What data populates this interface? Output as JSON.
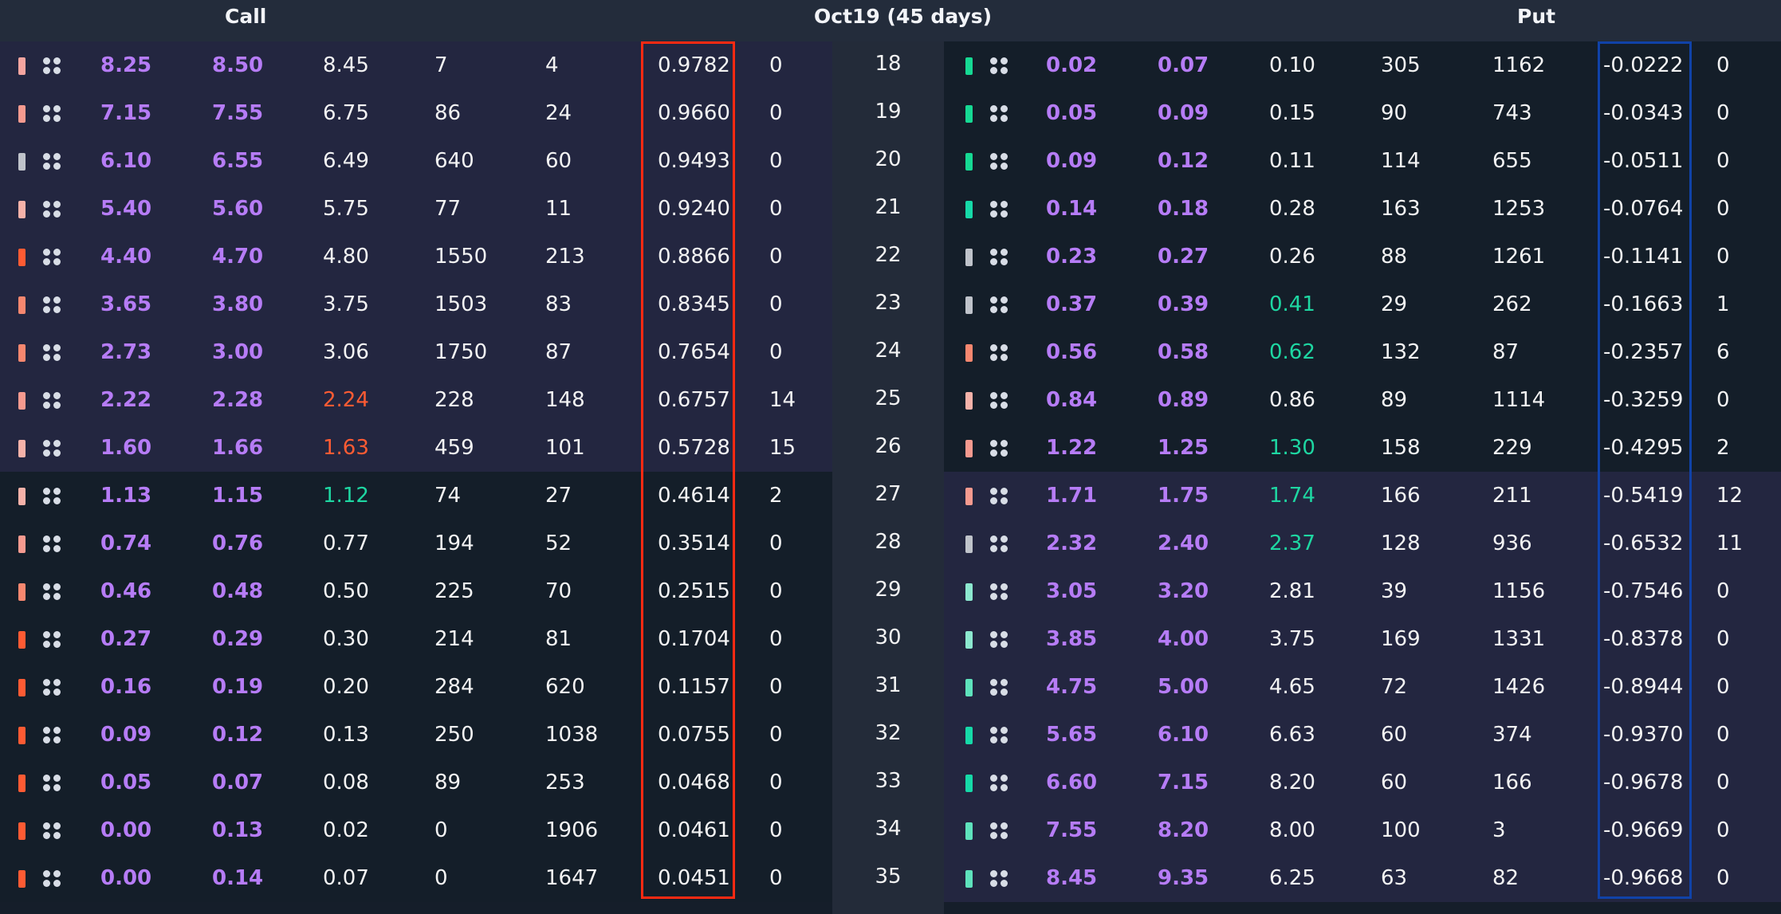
{
  "header": {
    "call_label": "Call",
    "expiry_label": "Oct19 (45 days)",
    "put_label": "Put"
  },
  "colors": {
    "call_itm_bg": "#232640",
    "put_itm_bg": "#232640",
    "otm_bg": "#141e29",
    "bid_ask": "#b67cf6",
    "last_up": "#1ed7a2",
    "last_down": "#ff5b33",
    "call_delta_highlight": "#ff2a12",
    "put_delta_highlight": "#1042a8"
  },
  "rows": [
    {
      "strike": "18",
      "call": {
        "bar": "#f6a5a0",
        "bid": "8.25",
        "ask": "8.50",
        "last": "8.45",
        "last_color": "",
        "vol": "7",
        "oi": "4",
        "delta": "0.9782",
        "pos": "0"
      },
      "put": {
        "bar": "#16d993",
        "bid": "0.02",
        "ask": "0.07",
        "last": "0.10",
        "last_color": "",
        "vol": "305",
        "oi": "1162",
        "delta": "-0.0222",
        "pos": "0"
      }
    },
    {
      "strike": "19",
      "call": {
        "bar": "#f69a8f",
        "bid": "7.15",
        "ask": "7.55",
        "last": "6.75",
        "last_color": "",
        "vol": "86",
        "oi": "24",
        "delta": "0.9660",
        "pos": "0"
      },
      "put": {
        "bar": "#16d993",
        "bid": "0.05",
        "ask": "0.09",
        "last": "0.15",
        "last_color": "",
        "vol": "90",
        "oi": "743",
        "delta": "-0.0343",
        "pos": "0"
      }
    },
    {
      "strike": "20",
      "call": {
        "bar": "#bfc3ca",
        "bid": "6.10",
        "ask": "6.55",
        "last": "6.49",
        "last_color": "",
        "vol": "640",
        "oi": "60",
        "delta": "0.9493",
        "pos": "0"
      },
      "put": {
        "bar": "#16d993",
        "bid": "0.09",
        "ask": "0.12",
        "last": "0.11",
        "last_color": "",
        "vol": "114",
        "oi": "655",
        "delta": "-0.0511",
        "pos": "0"
      }
    },
    {
      "strike": "21",
      "call": {
        "bar": "#f6b2a9",
        "bid": "5.40",
        "ask": "5.60",
        "last": "5.75",
        "last_color": "",
        "vol": "77",
        "oi": "11",
        "delta": "0.9240",
        "pos": "0"
      },
      "put": {
        "bar": "#16d9a8",
        "bid": "0.14",
        "ask": "0.18",
        "last": "0.28",
        "last_color": "",
        "vol": "163",
        "oi": "1253",
        "delta": "-0.0764",
        "pos": "0"
      }
    },
    {
      "strike": "22",
      "call": {
        "bar": "#ff5b33",
        "bid": "4.40",
        "ask": "4.70",
        "last": "4.80",
        "last_color": "",
        "vol": "1550",
        "oi": "213",
        "delta": "0.8866",
        "pos": "0"
      },
      "put": {
        "bar": "#bfc3ca",
        "bid": "0.23",
        "ask": "0.27",
        "last": "0.26",
        "last_color": "",
        "vol": "88",
        "oi": "1261",
        "delta": "-0.1141",
        "pos": "0"
      }
    },
    {
      "strike": "23",
      "call": {
        "bar": "#f7876f",
        "bid": "3.65",
        "ask": "3.80",
        "last": "3.75",
        "last_color": "",
        "vol": "1503",
        "oi": "83",
        "delta": "0.8345",
        "pos": "0"
      },
      "put": {
        "bar": "#bfc3ca",
        "bid": "0.37",
        "ask": "0.39",
        "last": "0.41",
        "last_color": "green",
        "vol": "29",
        "oi": "262",
        "delta": "-0.1663",
        "pos": "1"
      }
    },
    {
      "strike": "24",
      "call": {
        "bar": "#f7876f",
        "bid": "2.73",
        "ask": "3.00",
        "last": "3.06",
        "last_color": "",
        "vol": "1750",
        "oi": "87",
        "delta": "0.7654",
        "pos": "0"
      },
      "put": {
        "bar": "#f7876f",
        "bid": "0.56",
        "ask": "0.58",
        "last": "0.62",
        "last_color": "green",
        "vol": "132",
        "oi": "87",
        "delta": "-0.2357",
        "pos": "6"
      }
    },
    {
      "strike": "25",
      "call": {
        "bar": "#f69a8f",
        "bid": "2.22",
        "ask": "2.28",
        "last": "2.24",
        "last_color": "red",
        "vol": "228",
        "oi": "148",
        "delta": "0.6757",
        "pos": "14"
      },
      "put": {
        "bar": "#f6b2a9",
        "bid": "0.84",
        "ask": "0.89",
        "last": "0.86",
        "last_color": "",
        "vol": "89",
        "oi": "1114",
        "delta": "-0.3259",
        "pos": "0"
      }
    },
    {
      "strike": "26",
      "call": {
        "bar": "#f6b2a9",
        "bid": "1.60",
        "ask": "1.66",
        "last": "1.63",
        "last_color": "red",
        "vol": "459",
        "oi": "101",
        "delta": "0.5728",
        "pos": "15"
      },
      "put": {
        "bar": "#f69a8f",
        "bid": "1.22",
        "ask": "1.25",
        "last": "1.30",
        "last_color": "green",
        "vol": "158",
        "oi": "229",
        "delta": "-0.4295",
        "pos": "2"
      }
    },
    {
      "strike": "27",
      "call": {
        "bar": "#f6b2a9",
        "bid": "1.13",
        "ask": "1.15",
        "last": "1.12",
        "last_color": "green",
        "vol": "74",
        "oi": "27",
        "delta": "0.4614",
        "pos": "2"
      },
      "put": {
        "bar": "#f69a8f",
        "bid": "1.71",
        "ask": "1.75",
        "last": "1.74",
        "last_color": "green",
        "vol": "166",
        "oi": "211",
        "delta": "-0.5419",
        "pos": "12"
      }
    },
    {
      "strike": "28",
      "call": {
        "bar": "#f69a8f",
        "bid": "0.74",
        "ask": "0.76",
        "last": "0.77",
        "last_color": "",
        "vol": "194",
        "oi": "52",
        "delta": "0.3514",
        "pos": "0"
      },
      "put": {
        "bar": "#bfc3ca",
        "bid": "2.32",
        "ask": "2.40",
        "last": "2.37",
        "last_color": "green",
        "vol": "128",
        "oi": "936",
        "delta": "-0.6532",
        "pos": "11"
      }
    },
    {
      "strike": "29",
      "call": {
        "bar": "#f7876f",
        "bid": "0.46",
        "ask": "0.48",
        "last": "0.50",
        "last_color": "",
        "vol": "225",
        "oi": "70",
        "delta": "0.2515",
        "pos": "0"
      },
      "put": {
        "bar": "#8ce8cf",
        "bid": "3.05",
        "ask": "3.20",
        "last": "2.81",
        "last_color": "",
        "vol": "39",
        "oi": "1156",
        "delta": "-0.7546",
        "pos": "0"
      }
    },
    {
      "strike": "30",
      "call": {
        "bar": "#ff5b33",
        "bid": "0.27",
        "ask": "0.29",
        "last": "0.30",
        "last_color": "",
        "vol": "214",
        "oi": "81",
        "delta": "0.1704",
        "pos": "0"
      },
      "put": {
        "bar": "#8ce8cf",
        "bid": "3.85",
        "ask": "4.00",
        "last": "3.75",
        "last_color": "",
        "vol": "169",
        "oi": "1331",
        "delta": "-0.8378",
        "pos": "0"
      }
    },
    {
      "strike": "31",
      "call": {
        "bar": "#ff5b33",
        "bid": "0.16",
        "ask": "0.19",
        "last": "0.20",
        "last_color": "",
        "vol": "284",
        "oi": "620",
        "delta": "0.1157",
        "pos": "0"
      },
      "put": {
        "bar": "#5ee2bc",
        "bid": "4.75",
        "ask": "5.00",
        "last": "4.65",
        "last_color": "",
        "vol": "72",
        "oi": "1426",
        "delta": "-0.8944",
        "pos": "0"
      }
    },
    {
      "strike": "32",
      "call": {
        "bar": "#ff5b33",
        "bid": "0.09",
        "ask": "0.12",
        "last": "0.13",
        "last_color": "",
        "vol": "250",
        "oi": "1038",
        "delta": "0.0755",
        "pos": "0"
      },
      "put": {
        "bar": "#16d9a8",
        "bid": "5.65",
        "ask": "6.10",
        "last": "6.63",
        "last_color": "",
        "vol": "60",
        "oi": "374",
        "delta": "-0.9370",
        "pos": "0"
      }
    },
    {
      "strike": "33",
      "call": {
        "bar": "#ff5b33",
        "bid": "0.05",
        "ask": "0.07",
        "last": "0.08",
        "last_color": "",
        "vol": "89",
        "oi": "253",
        "delta": "0.0468",
        "pos": "0"
      },
      "put": {
        "bar": "#16d9a8",
        "bid": "6.60",
        "ask": "7.15",
        "last": "8.20",
        "last_color": "",
        "vol": "60",
        "oi": "166",
        "delta": "-0.9678",
        "pos": "0"
      }
    },
    {
      "strike": "34",
      "call": {
        "bar": "#ff5b33",
        "bid": "0.00",
        "ask": "0.13",
        "last": "0.02",
        "last_color": "",
        "vol": "0",
        "oi": "1906",
        "delta": "0.0461",
        "pos": "0"
      },
      "put": {
        "bar": "#5ee2bc",
        "bid": "7.55",
        "ask": "8.20",
        "last": "8.00",
        "last_color": "",
        "vol": "100",
        "oi": "3",
        "delta": "-0.9669",
        "pos": "0"
      }
    },
    {
      "strike": "35",
      "call": {
        "bar": "#ff5b33",
        "bid": "0.00",
        "ask": "0.14",
        "last": "0.07",
        "last_color": "",
        "vol": "0",
        "oi": "1647",
        "delta": "0.0451",
        "pos": "0"
      },
      "put": {
        "bar": "#5ee2bc",
        "bid": "8.45",
        "ask": "9.35",
        "last": "6.25",
        "last_color": "",
        "vol": "63",
        "oi": "82",
        "delta": "-0.9668",
        "pos": "0"
      }
    }
  ]
}
